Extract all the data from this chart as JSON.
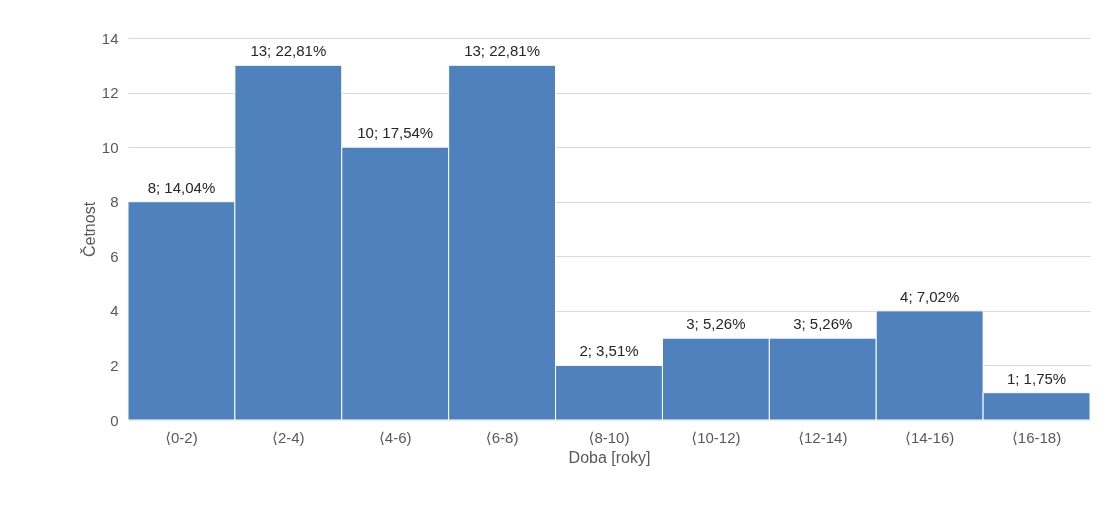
{
  "chart_data": {
    "type": "bar",
    "xlabel": "Doba [roky]",
    "ylabel": "Četnost",
    "categories": [
      "⟨0-2)",
      "⟨2-4)",
      "⟨4-6)",
      "⟨6-8)",
      "⟨8-10)",
      "⟨10-12)",
      "⟨12-14)",
      "⟨14-16)",
      "⟨16-18)"
    ],
    "values": [
      8,
      13,
      10,
      13,
      2,
      3,
      3,
      4,
      1
    ],
    "value_labels": [
      "8; 14,04%",
      "13; 22,81%",
      "10; 17,54%",
      "13; 22,81%",
      "2; 3,51%",
      "3; 5,26%",
      "3; 5,26%",
      "4; 7,02%",
      "1; 1,75%"
    ],
    "color": "#4f81bd",
    "ylim": [
      0,
      14
    ],
    "yticks": [
      0,
      2,
      4,
      6,
      8,
      10,
      12,
      14
    ],
    "grid": "y"
  }
}
